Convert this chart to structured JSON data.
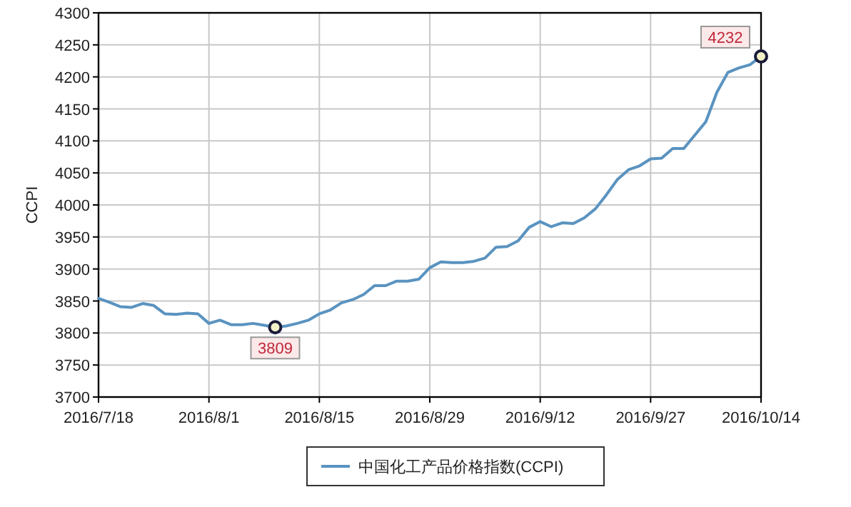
{
  "chart_data": {
    "type": "line",
    "ylabel": "CCPI",
    "categories": [
      "2016/7/18",
      null,
      null,
      null,
      null,
      null,
      null,
      null,
      null,
      null,
      "2016/8/1",
      null,
      null,
      null,
      null,
      null,
      null,
      null,
      null,
      null,
      "2016/8/15",
      null,
      null,
      null,
      null,
      null,
      null,
      null,
      null,
      null,
      "2016/8/29",
      null,
      null,
      null,
      null,
      null,
      null,
      null,
      null,
      null,
      "2016/9/12",
      null,
      null,
      null,
      null,
      null,
      null,
      null,
      null,
      null,
      "2016/9/27",
      null,
      null,
      null,
      null,
      null,
      null,
      null,
      null,
      null,
      "2016/10/14"
    ],
    "series": [
      {
        "name": "中国化工产品价格指数(CCPI)",
        "color": "#5a93c0",
        "values": [
          3854,
          3848,
          3841,
          3840,
          3846,
          3843,
          3830,
          3829,
          3831,
          3830,
          3815,
          3820,
          3813,
          3813,
          3815,
          3812,
          3809,
          3811,
          3815,
          3820,
          3830,
          3836,
          3847,
          3852,
          3860,
          3874,
          3874,
          3881,
          3881,
          3884,
          3902,
          3911,
          3910,
          3910,
          3912,
          3917,
          3934,
          3935,
          3944,
          3965,
          3974,
          3966,
          3972,
          3971,
          3980,
          3994,
          4016,
          4040,
          4055,
          4061,
          4072,
          4073,
          4088,
          4088,
          4109,
          4130,
          4176,
          4207,
          4214,
          4219,
          4232
        ],
        "value_labels": [
          null,
          null,
          null,
          null,
          null,
          null,
          null,
          null,
          null,
          null,
          null,
          null,
          null,
          null,
          null,
          null,
          "3809",
          null,
          null,
          null,
          null,
          null,
          null,
          null,
          null,
          null,
          null,
          null,
          null,
          null,
          null,
          null,
          null,
          null,
          null,
          null,
          null,
          null,
          null,
          null,
          null,
          null,
          null,
          null,
          null,
          null,
          null,
          null,
          null,
          null,
          null,
          null,
          null,
          null,
          null,
          null,
          null,
          null,
          null,
          null,
          "4232"
        ]
      }
    ],
    "ylim": [
      3700,
      4300
    ],
    "yticks": [
      3700,
      3750,
      3800,
      3850,
      3900,
      3950,
      4000,
      4050,
      4100,
      4150,
      4200,
      4250,
      4300
    ],
    "grid": true,
    "legend": "bottom"
  }
}
